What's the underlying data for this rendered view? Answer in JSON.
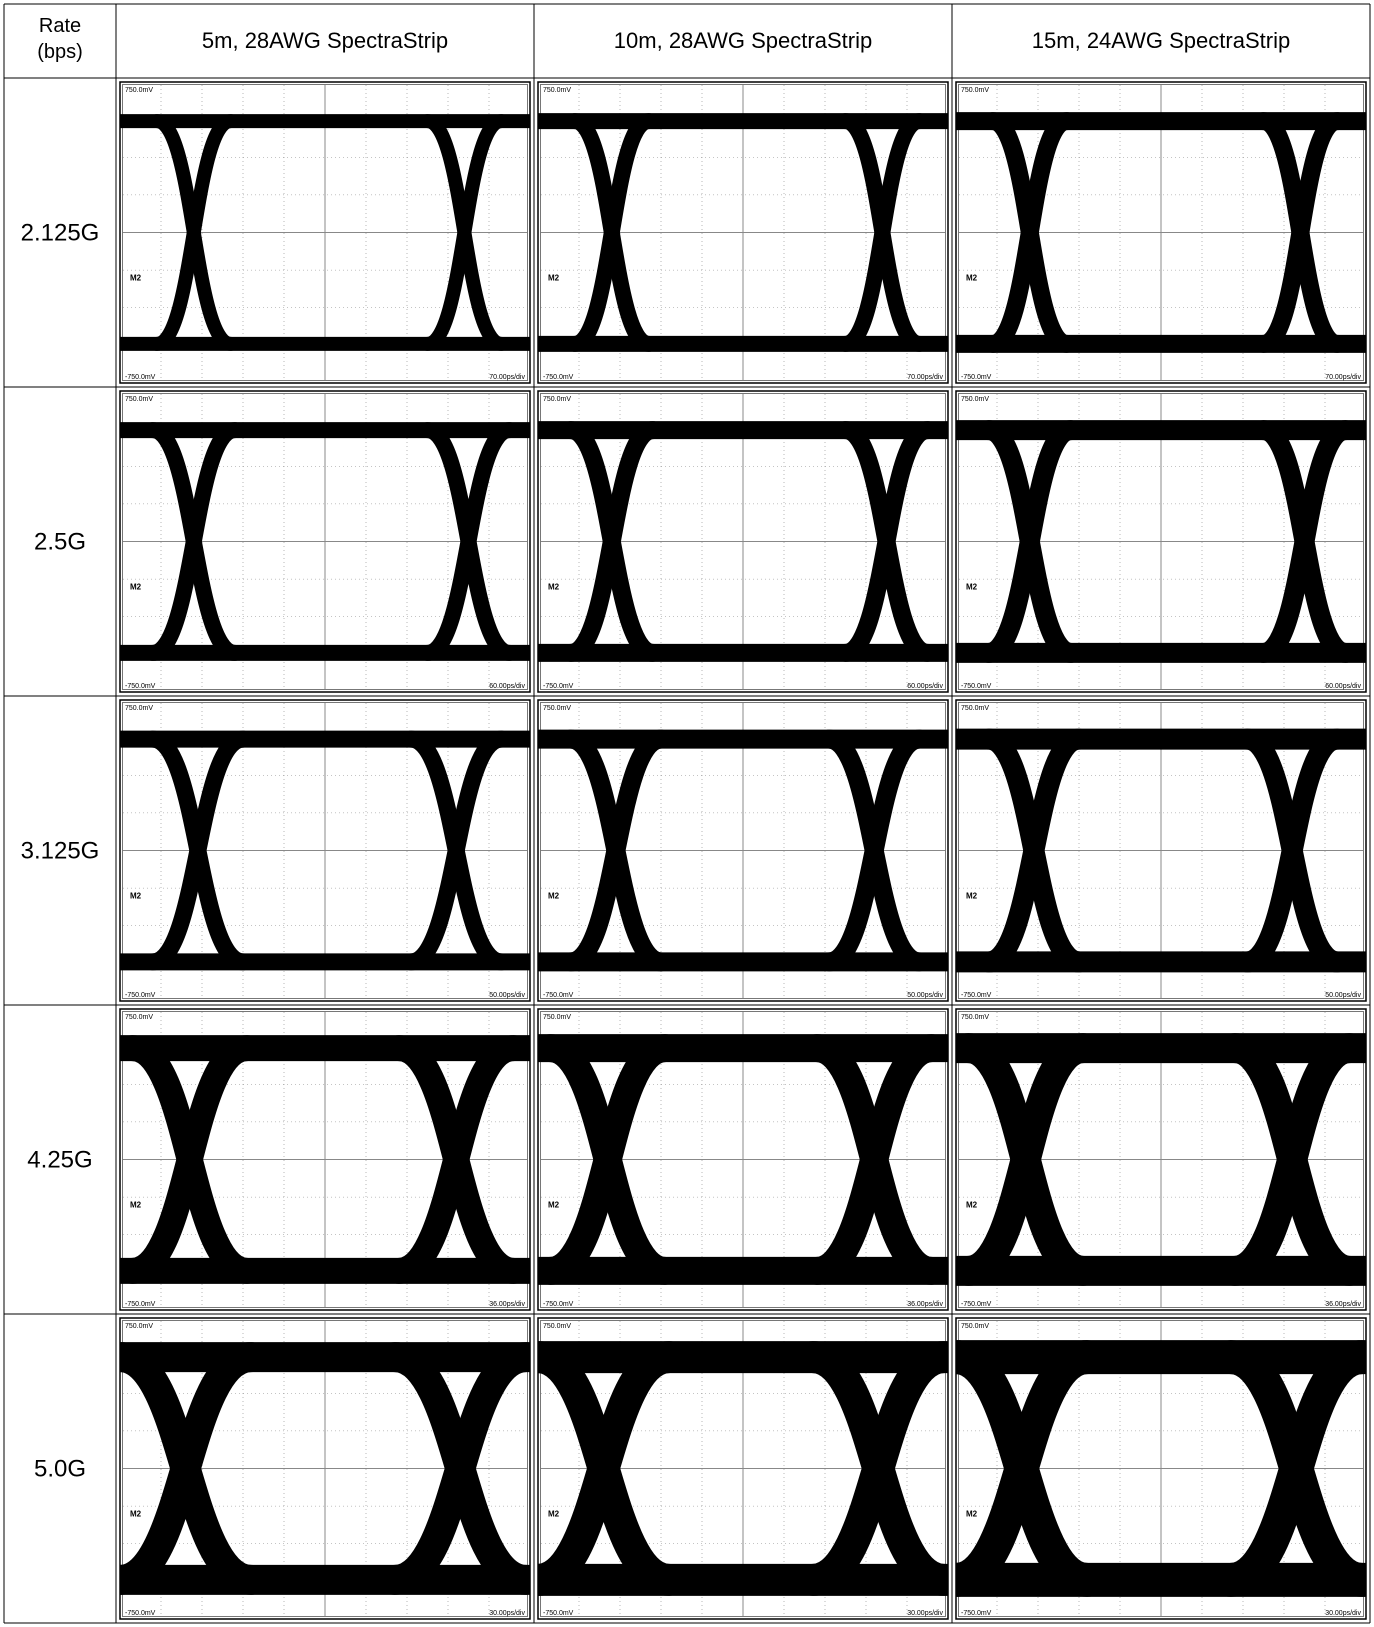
{
  "table": {
    "header": [
      "Rate (bps)",
      "5m, 28AWG SpectraStrip",
      "10m, 28AWG SpectraStrip",
      "15m, 24AWG SpectraStrip"
    ],
    "scope": {
      "top": "750.0mV",
      "bottom": "-750.0mV",
      "marker": "M2"
    },
    "rows": [
      {
        "rate": "2.125G",
        "timebase": "70.00ps/div"
      },
      {
        "rate": "2.5G",
        "timebase": "60.00ps/div"
      },
      {
        "rate": "3.125G",
        "timebase": "50.00ps/div"
      },
      {
        "rate": "4.25G",
        "timebase": "36.00ps/div"
      },
      {
        "rate": "5.0G",
        "timebase": "30.00ps/div"
      }
    ]
  }
}
